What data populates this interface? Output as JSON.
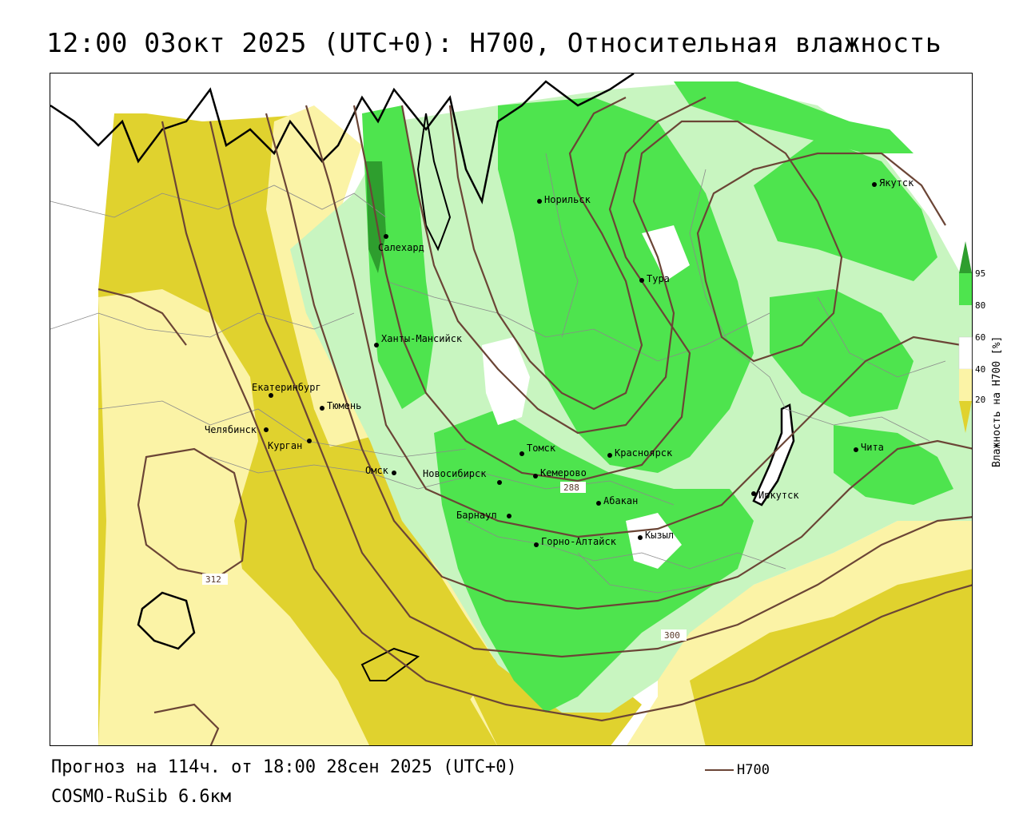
{
  "title": "12:00 03окт 2025 (UTC+0): H700, Относительная влажность",
  "footer": {
    "forecast": "Прогноз на 114ч. от 18:00 28сен 2025 (UTC+0)",
    "model": "COSMO-RuSib 6.6км"
  },
  "line_legend": {
    "label": "H700",
    "color": "#6b4536"
  },
  "colorbar": {
    "title": "Влажность на H700 [%]",
    "ticks": [
      "95",
      "80",
      "60",
      "40",
      "20"
    ],
    "colors": {
      "dry_20": "#e0d22e",
      "dry_40": "#fbf3a6",
      "mid_60": "#ffffff",
      "wet_80": "#c8f5c0",
      "wet_95": "#4ee44e",
      "sat": "#2e9e2e"
    }
  },
  "cities": [
    {
      "name": "Норильск"
    },
    {
      "name": "Салехард"
    },
    {
      "name": "Якутск"
    },
    {
      "name": "Тура"
    },
    {
      "name": "Ханты-Мансийск"
    },
    {
      "name": "Екатеринбург"
    },
    {
      "name": "Тюмень"
    },
    {
      "name": "Челябинск"
    },
    {
      "name": "Курган"
    },
    {
      "name": "Омск"
    },
    {
      "name": "Томск"
    },
    {
      "name": "Красноярск"
    },
    {
      "name": "Новосибирск"
    },
    {
      "name": "Кемерово"
    },
    {
      "name": "Абакан"
    },
    {
      "name": "Барнаул"
    },
    {
      "name": "Горно-Алтайск"
    },
    {
      "name": "Кызыл"
    },
    {
      "name": "Иркутск"
    },
    {
      "name": "Чита"
    }
  ],
  "contour_labels": [
    "312",
    "288",
    "300"
  ]
}
